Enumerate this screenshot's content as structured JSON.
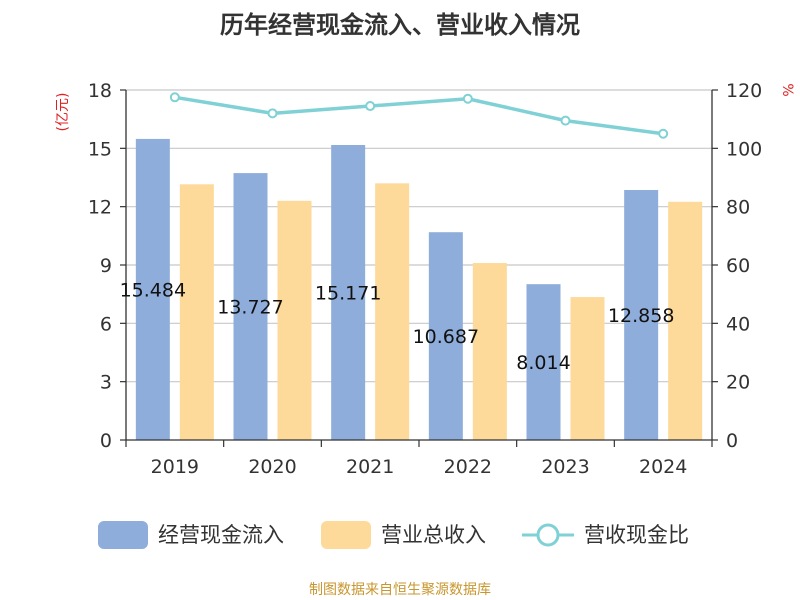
{
  "colors": {
    "cash_inflow": "#8EADDB",
    "revenue": "#FDD99A",
    "ratio": "#7FD1D5",
    "unit_red": "#E02020",
    "source": "#C8962E",
    "axis": "#333333",
    "grid": "#C8C8C8"
  },
  "chart_data": {
    "type": "bar",
    "title": "历年经营现金流入、营业收入情况",
    "categories": [
      "2019",
      "2020",
      "2021",
      "2022",
      "2023",
      "2024"
    ],
    "series": [
      {
        "name": "经营现金流入",
        "type": "bar",
        "axis": "left",
        "values": [
          15.484,
          13.727,
          15.171,
          10.687,
          8.014,
          12.858
        ]
      },
      {
        "name": "营业总收入",
        "type": "bar",
        "axis": "left",
        "values": [
          13.15,
          12.3,
          13.2,
          9.1,
          7.35,
          12.25
        ]
      },
      {
        "name": "营收现金比",
        "type": "line",
        "axis": "right",
        "values": [
          117.5,
          112,
          114.5,
          117,
          109.5,
          105
        ]
      }
    ],
    "bar_labels": [
      "15.484",
      "13.727",
      "15.171",
      "10.687",
      "8.014",
      "12.858"
    ],
    "y_left": {
      "unit": "(亿元)",
      "ylim": [
        0,
        18
      ],
      "ticks": [
        0,
        3,
        6,
        9,
        12,
        15,
        18
      ]
    },
    "y_right": {
      "unit": "%",
      "ylim": [
        0,
        120
      ],
      "ticks": [
        0,
        20,
        40,
        60,
        80,
        100,
        120
      ]
    },
    "grid": true,
    "legend_position": "bottom"
  },
  "source": "制图数据来自恒生聚源数据库"
}
